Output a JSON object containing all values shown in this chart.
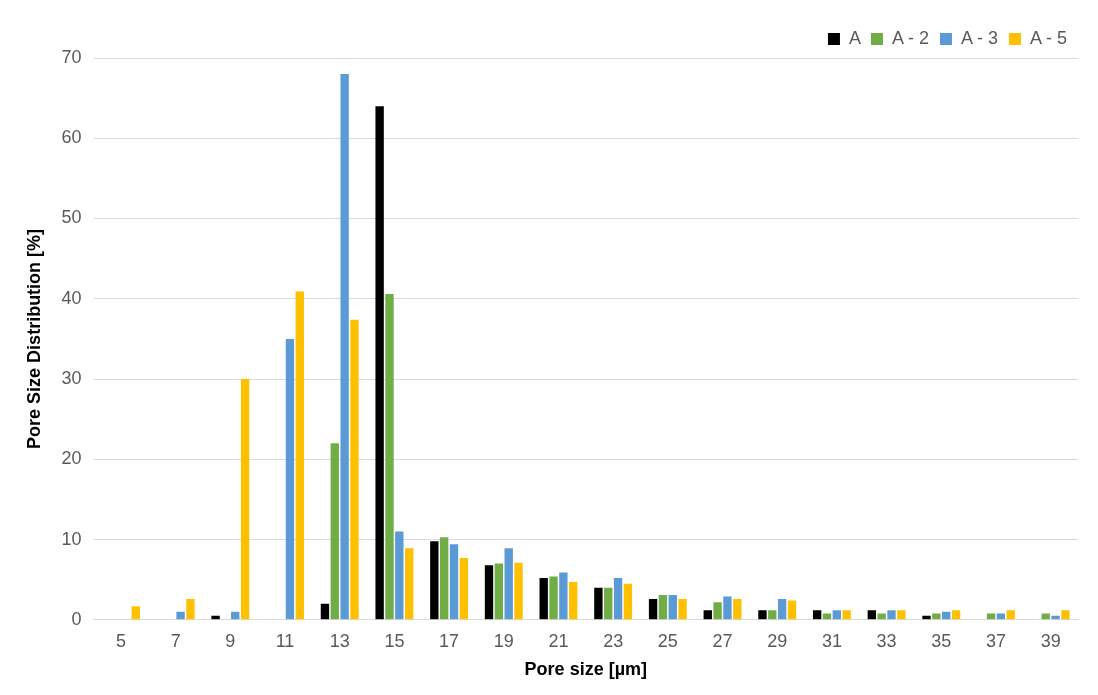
{
  "chart_data": {
    "type": "bar",
    "xlabel": "Pore size [µm]",
    "ylabel": "Pore Size Distribution [%]",
    "categories": [
      "5",
      "7",
      "9",
      "11",
      "13",
      "15",
      "17",
      "19",
      "21",
      "23",
      "25",
      "27",
      "29",
      "31",
      "33",
      "35",
      "37",
      "39"
    ],
    "series": [
      {
        "name": "A",
        "color": "#000000",
        "values": [
          0,
          0,
          0.5,
          0,
          2.0,
          64,
          9.8,
          6.8,
          5.2,
          4.0,
          2.6,
          1.2,
          1.2,
          1.2,
          1.2,
          0.5,
          0,
          0
        ]
      },
      {
        "name": "A - 2",
        "color": "#70ad47",
        "values": [
          0,
          0,
          0,
          0,
          22,
          40.6,
          10.3,
          7.0,
          5.4,
          4.0,
          3.1,
          2.2,
          1.2,
          0.8,
          0.8,
          0.8,
          0.8,
          0.8
        ]
      },
      {
        "name": "A - 3",
        "color": "#5b9bd5",
        "values": [
          0,
          1.0,
          1.0,
          35,
          68,
          11.0,
          9.4,
          8.9,
          5.9,
          5.2,
          3.1,
          2.9,
          2.6,
          1.2,
          1.2,
          1.0,
          0.8,
          0.5
        ]
      },
      {
        "name": "A - 5",
        "color": "#ffc000",
        "values": [
          1.7,
          2.6,
          30,
          40.9,
          37.4,
          8.9,
          7.7,
          7.1,
          4.7,
          4.5,
          2.6,
          2.6,
          2.4,
          1.2,
          1.2,
          1.2,
          1.2,
          1.2
        ]
      }
    ],
    "ylim": [
      0,
      70
    ],
    "yticks": [
      0,
      10,
      20,
      30,
      40,
      50,
      60,
      70
    ],
    "grid": "y",
    "legend": "top right"
  }
}
